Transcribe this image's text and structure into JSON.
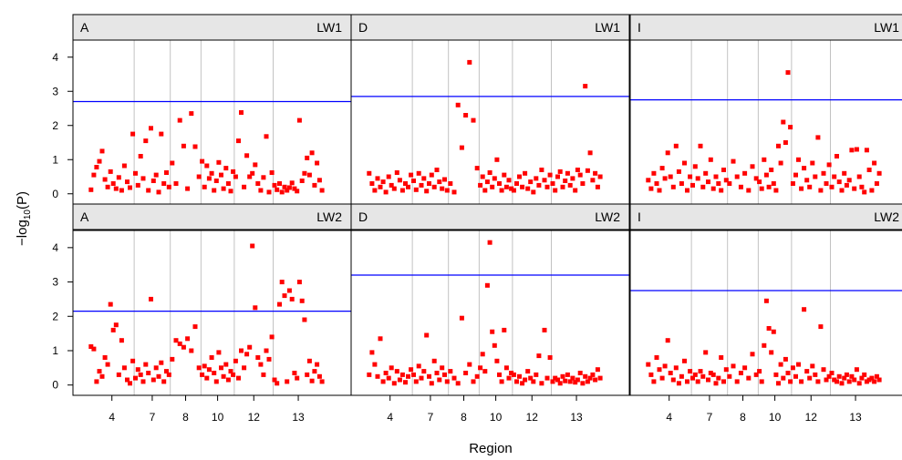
{
  "chart_data": {
    "type": "scatter",
    "description_free": true,
    "xlabel": "Region",
    "ylabel_prefix": "−log",
    "ylabel_sub": "10",
    "ylabel_suffix": "(P)",
    "ylim": [
      -0.3,
      4.5
    ],
    "y_ticks": [
      0,
      1,
      2,
      3,
      4
    ],
    "grid": "vertical region boundaries",
    "point_color": "#ff0000",
    "threshold_color": "#0000ff",
    "strip_color": "#e6e6e6",
    "regions": [
      {
        "label": "4",
        "n": 16
      },
      {
        "label": "7",
        "n": 14
      },
      {
        "label": "8",
        "n": 8
      },
      {
        "label": "10",
        "n": 14
      },
      {
        "label": "12",
        "n": 14
      },
      {
        "label": "13",
        "n": 20
      }
    ],
    "rows": [
      "LW1",
      "LW2"
    ],
    "columns": [
      "A",
      "D",
      "I"
    ],
    "panels": [
      {
        "row": "LW1",
        "col": "A",
        "threshold": 2.7,
        "values": [
          0.12,
          0.55,
          0.78,
          0.95,
          1.25,
          0.42,
          0.2,
          0.65,
          0.3,
          0.15,
          0.48,
          0.1,
          0.82,
          0.35,
          0.18,
          1.75,
          0.6,
          0.25,
          1.1,
          0.45,
          1.55,
          0.1,
          1.92,
          0.38,
          0.55,
          0.05,
          1.75,
          0.3,
          0.62,
          0.2,
          0.9,
          0.3,
          2.15,
          1.4,
          0.15,
          2.35,
          1.38,
          0.5,
          0.95,
          0.2,
          0.82,
          0.45,
          0.6,
          0.1,
          0.38,
          0.92,
          0.55,
          0.15,
          0.75,
          0.3,
          0.08,
          0.65,
          0.5,
          1.55,
          2.38,
          0.2,
          1.12,
          0.5,
          0.6,
          0.85,
          0.3,
          0.1,
          0.48,
          1.68,
          0.05,
          0.62,
          0.25,
          0.12,
          0.3,
          0.05,
          0.2,
          0.1,
          0.18,
          0.32,
          0.15,
          0.08,
          2.15,
          0.38,
          0.6,
          1.05,
          0.55,
          1.2,
          0.25,
          0.9,
          0.4,
          0.1
        ]
      },
      {
        "row": "LW1",
        "col": "D",
        "threshold": 2.85,
        "values": [
          0.6,
          0.3,
          0.1,
          0.45,
          0.2,
          0.35,
          0.05,
          0.5,
          0.25,
          0.15,
          0.62,
          0.4,
          0.1,
          0.3,
          0.2,
          0.55,
          0.38,
          0.12,
          0.6,
          0.25,
          0.45,
          0.08,
          0.3,
          0.55,
          0.2,
          0.7,
          0.35,
          0.15,
          0.42,
          0.1,
          0.3,
          0.05,
          2.6,
          1.35,
          2.3,
          3.85,
          2.15,
          0.75,
          0.25,
          0.5,
          0.1,
          0.35,
          0.62,
          0.2,
          0.45,
          1.0,
          0.3,
          0.1,
          0.55,
          0.2,
          0.4,
          0.15,
          0.1,
          0.3,
          0.5,
          0.2,
          0.6,
          0.15,
          0.35,
          0.05,
          0.45,
          0.25,
          0.7,
          0.4,
          0.2,
          0.55,
          0.3,
          0.1,
          0.5,
          0.65,
          0.2,
          0.38,
          0.6,
          0.25,
          0.45,
          0.1,
          0.7,
          0.55,
          0.3,
          3.15,
          0.68,
          1.2,
          0.4,
          0.6,
          0.2,
          0.5
        ]
      },
      {
        "row": "LW1",
        "col": "I",
        "threshold": 2.75,
        "values": [
          0.4,
          0.15,
          0.6,
          0.3,
          0.1,
          0.75,
          0.45,
          1.2,
          0.5,
          0.2,
          1.4,
          0.65,
          0.3,
          0.9,
          0.1,
          0.5,
          0.25,
          0.8,
          0.45,
          1.4,
          0.2,
          0.6,
          0.35,
          1.0,
          0.15,
          0.5,
          0.3,
          0.1,
          0.7,
          0.4,
          0.3,
          0.95,
          0.5,
          0.2,
          0.6,
          0.1,
          0.8,
          0.45,
          0.35,
          0.15,
          1.0,
          0.55,
          0.2,
          0.7,
          0.3,
          0.1,
          1.4,
          0.9,
          2.1,
          1.5,
          3.55,
          1.95,
          0.3,
          0.55,
          1.0,
          0.15,
          0.75,
          0.4,
          0.2,
          0.9,
          0.5,
          1.65,
          0.1,
          0.6,
          0.3,
          0.85,
          0.2,
          0.5,
          1.1,
          0.35,
          0.1,
          0.6,
          0.25,
          0.4,
          1.28,
          0.15,
          1.3,
          0.5,
          0.2,
          0.05,
          1.28,
          0.7,
          0.1,
          0.9,
          0.3,
          0.6
        ]
      },
      {
        "row": "LW2",
        "col": "A",
        "threshold": 2.15,
        "values": [
          1.12,
          1.05,
          0.1,
          0.4,
          0.25,
          0.8,
          0.6,
          2.35,
          1.6,
          1.75,
          0.3,
          1.3,
          0.5,
          0.15,
          0.05,
          0.7,
          0.2,
          0.45,
          0.3,
          0.1,
          0.6,
          0.35,
          2.5,
          0.15,
          0.5,
          0.25,
          0.65,
          0.1,
          0.4,
          0.3,
          0.75,
          1.3,
          1.2,
          1.1,
          1.35,
          1.0,
          1.7,
          0.5,
          0.3,
          0.55,
          0.2,
          0.45,
          0.8,
          0.35,
          0.1,
          0.95,
          0.5,
          0.25,
          0.6,
          0.15,
          0.4,
          0.3,
          0.7,
          0.2,
          1.0,
          0.5,
          0.9,
          1.1,
          4.05,
          2.25,
          0.8,
          0.6,
          0.3,
          1.0,
          0.75,
          1.4,
          0.15,
          0.05,
          2.35,
          3.0,
          2.6,
          0.1,
          2.75,
          2.5,
          0.35,
          0.2,
          3.0,
          2.45,
          1.9,
          0.3,
          0.7,
          0.12,
          0.4,
          0.6,
          0.25,
          0.1
        ]
      },
      {
        "row": "LW2",
        "col": "D",
        "threshold": 3.2,
        "values": [
          0.3,
          0.95,
          0.6,
          0.25,
          1.35,
          0.1,
          0.35,
          0.2,
          0.5,
          0.05,
          0.4,
          0.15,
          0.3,
          0.08,
          0.25,
          0.45,
          0.3,
          0.1,
          0.55,
          0.2,
          0.4,
          1.45,
          0.25,
          0.05,
          0.7,
          0.35,
          0.15,
          0.5,
          0.3,
          0.1,
          0.4,
          0.2,
          0.05,
          1.95,
          0.35,
          0.6,
          0.1,
          0.25,
          0.5,
          0.9,
          0.4,
          2.9,
          4.15,
          1.55,
          1.15,
          0.7,
          0.3,
          0.1,
          1.6,
          0.5,
          0.2,
          0.35,
          0.3,
          0.1,
          0.25,
          0.05,
          0.15,
          0.4,
          0.2,
          0.1,
          0.3,
          0.85,
          0.05,
          1.6,
          0.2,
          0.8,
          0.1,
          0.2,
          0.15,
          0.05,
          0.25,
          0.12,
          0.3,
          0.1,
          0.2,
          0.08,
          0.15,
          0.35,
          0.05,
          0.25,
          0.1,
          0.2,
          0.3,
          0.15,
          0.45,
          0.2
        ]
      },
      {
        "row": "LW2",
        "col": "I",
        "threshold": 2.75,
        "values": [
          0.6,
          0.3,
          0.1,
          0.8,
          0.45,
          0.2,
          0.55,
          1.3,
          0.35,
          0.15,
          0.5,
          0.05,
          0.25,
          0.7,
          0.1,
          0.4,
          0.2,
          0.3,
          0.1,
          0.4,
          0.25,
          0.95,
          0.15,
          0.35,
          0.3,
          0.05,
          0.2,
          0.8,
          0.1,
          0.45,
          0.25,
          0.55,
          0.1,
          0.35,
          0.5,
          0.2,
          0.9,
          0.3,
          0.4,
          0.1,
          1.15,
          2.45,
          1.65,
          0.95,
          1.55,
          0.3,
          0.05,
          0.6,
          0.2,
          0.75,
          0.35,
          0.1,
          0.5,
          0.25,
          0.6,
          0.1,
          2.2,
          0.4,
          0.2,
          0.55,
          0.3,
          0.1,
          1.7,
          0.45,
          0.15,
          0.25,
          0.35,
          0.15,
          0.1,
          0.25,
          0.05,
          0.2,
          0.3,
          0.1,
          0.25,
          0.15,
          0.45,
          0.05,
          0.2,
          0.3,
          0.1,
          0.15,
          0.2,
          0.1,
          0.25,
          0.15
        ]
      }
    ]
  }
}
